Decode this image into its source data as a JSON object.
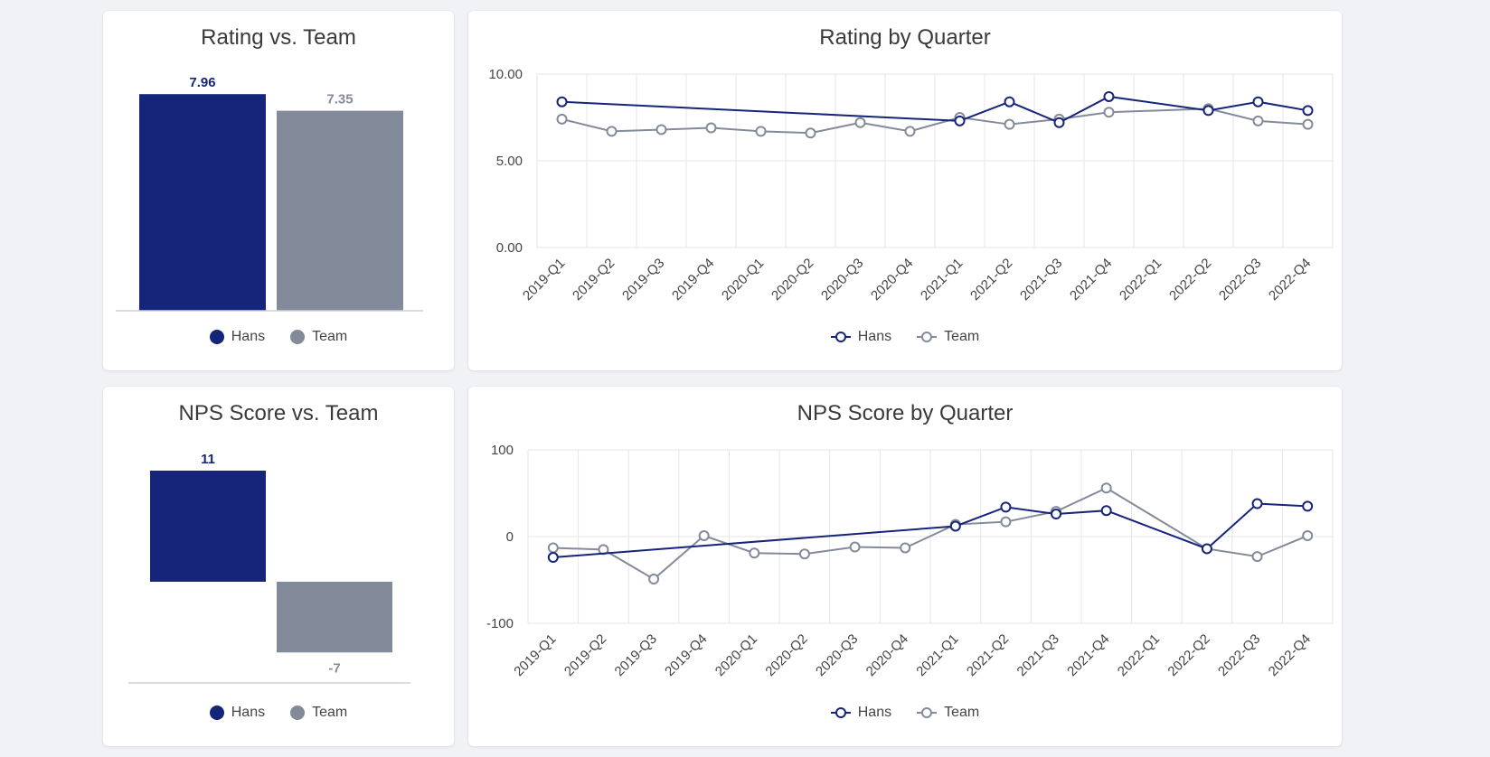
{
  "colors": {
    "hans": "#162479",
    "team": "#838a99",
    "grid": "#e4e6ea",
    "axis": "#cdd1da"
  },
  "legend": {
    "hans": "Hans",
    "team": "Team"
  },
  "chart_data": [
    {
      "id": "rating-team",
      "type": "bar",
      "title": "Rating vs. Team",
      "categories": [
        "Hans",
        "Team"
      ],
      "values": [
        7.96,
        7.35
      ],
      "labels": [
        "7.96",
        "7.35"
      ],
      "ylim": [
        0,
        8
      ]
    },
    {
      "id": "rating-quarter",
      "type": "line",
      "title": "Rating by Quarter",
      "x": [
        "2019-Q1",
        "2019-Q2",
        "2019-Q3",
        "2019-Q4",
        "2020-Q1",
        "2020-Q2",
        "2020-Q3",
        "2020-Q4",
        "2021-Q1",
        "2021-Q2",
        "2021-Q3",
        "2021-Q4",
        "2022-Q1",
        "2022-Q2",
        "2022-Q3",
        "2022-Q4"
      ],
      "ylim": [
        0,
        10
      ],
      "yticks": [
        0,
        5,
        10
      ],
      "ytick_labels": [
        "0.00",
        "5.00",
        "10.00"
      ],
      "series": [
        {
          "name": "Hans",
          "values": [
            8.4,
            null,
            null,
            null,
            null,
            null,
            null,
            null,
            7.3,
            8.4,
            7.2,
            8.7,
            null,
            7.9,
            8.4,
            7.9
          ]
        },
        {
          "name": "Team",
          "values": [
            7.4,
            6.7,
            6.8,
            6.9,
            6.7,
            6.6,
            7.2,
            6.7,
            7.5,
            7.1,
            7.4,
            7.8,
            null,
            8.0,
            7.3,
            7.1
          ]
        }
      ]
    },
    {
      "id": "nps-team",
      "type": "bar",
      "title": "NPS Score vs. Team",
      "categories": [
        "Hans",
        "Team"
      ],
      "values": [
        11,
        -7
      ],
      "labels": [
        "11",
        "-7"
      ],
      "ylim": [
        -8,
        11
      ]
    },
    {
      "id": "nps-quarter",
      "type": "line",
      "title": "NPS Score by Quarter",
      "x": [
        "2019-Q1",
        "2019-Q2",
        "2019-Q3",
        "2019-Q4",
        "2020-Q1",
        "2020-Q2",
        "2020-Q3",
        "2020-Q4",
        "2021-Q1",
        "2021-Q2",
        "2021-Q3",
        "2021-Q4",
        "2022-Q1",
        "2022-Q2",
        "2022-Q3",
        "2022-Q4"
      ],
      "ylim": [
        -100,
        100
      ],
      "yticks": [
        -100,
        0,
        100
      ],
      "ytick_labels": [
        "-100",
        "0",
        "100"
      ],
      "series": [
        {
          "name": "Hans",
          "values": [
            -24,
            null,
            null,
            null,
            null,
            null,
            null,
            null,
            12,
            34,
            26,
            30,
            null,
            -14,
            38,
            35
          ]
        },
        {
          "name": "Team",
          "values": [
            -13,
            -15,
            -49,
            1,
            -19,
            -20,
            -12,
            -13,
            14,
            17,
            29,
            56,
            null,
            -14,
            -23,
            1
          ]
        }
      ]
    }
  ]
}
